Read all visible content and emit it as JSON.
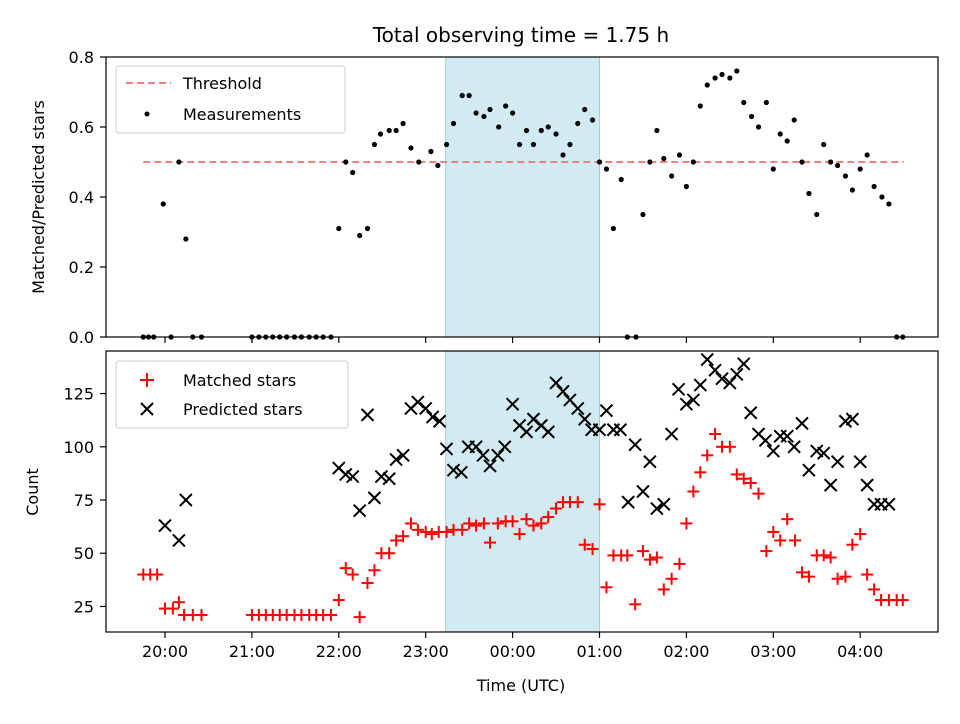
{
  "chart_data": {
    "title": "Total observing time = 1.75 h",
    "xlabel": "Time (UTC)",
    "x_ticks": [
      "20:00",
      "21:00",
      "22:00",
      "23:00",
      "00:00",
      "01:00",
      "02:00",
      "03:00",
      "04:00"
    ],
    "x_unit": "hours since 20:00 UTC",
    "shaded_interval": [
      3.23,
      5.0
    ],
    "shade_color": "#add8e6",
    "panels": [
      {
        "type": "scatter",
        "ylabel": "Matched/Predicted stars",
        "ylim": [
          0,
          0.8
        ],
        "y_ticks": [
          "0.0",
          "0.2",
          "0.4",
          "0.6",
          "0.8"
        ],
        "legend_position": "top-left",
        "threshold": {
          "name": "Threshold",
          "value": 0.5,
          "x_range": [
            -0.25,
            8.5
          ],
          "color": "#f08080"
        },
        "series": [
          {
            "name": "Measurements",
            "color": "#000000",
            "x": [
              -0.25,
              -0.19,
              -0.13,
              -0.02,
              0.07,
              0.16,
              0.24,
              0.32,
              0.42,
              1.0,
              1.08,
              1.16,
              1.24,
              1.32,
              1.4,
              1.49,
              1.57,
              1.66,
              1.74,
              1.82,
              1.91,
              2.0,
              2.08,
              2.16,
              2.24,
              2.33,
              2.41,
              2.48,
              2.58,
              2.66,
              2.74,
              2.83,
              2.92,
              3.06,
              3.14,
              3.24,
              3.32,
              3.42,
              3.5,
              3.58,
              3.67,
              3.74,
              3.84,
              3.92,
              4.0,
              4.08,
              4.16,
              4.24,
              4.33,
              4.41,
              4.5,
              4.58,
              4.66,
              4.75,
              4.83,
              4.92,
              5.0,
              5.08,
              5.16,
              5.25,
              5.32,
              5.42,
              5.5,
              5.58,
              5.66,
              5.74,
              5.83,
              5.92,
              6.0,
              6.08,
              6.16,
              6.24,
              6.33,
              6.41,
              6.5,
              6.58,
              6.66,
              6.75,
              6.83,
              6.92,
              7.0,
              7.08,
              7.16,
              7.24,
              7.33,
              7.41,
              7.5,
              7.58,
              7.66,
              7.74,
              7.83,
              7.91,
              8.0,
              8.08,
              8.16,
              8.25,
              8.33,
              8.42,
              8.49
            ],
            "y": [
              0,
              0,
              0,
              0.38,
              0,
              0.5,
              0.28,
              0,
              0,
              0,
              0,
              0,
              0,
              0,
              0,
              0,
              0,
              0,
              0,
              0,
              0,
              0.31,
              0.5,
              0.47,
              0.29,
              0.31,
              0.55,
              0.58,
              0.59,
              0.59,
              0.61,
              0.54,
              0.5,
              0.53,
              0.49,
              0.55,
              0.61,
              0.69,
              0.69,
              0.64,
              0.63,
              0.65,
              0.6,
              0.66,
              0.64,
              0.55,
              0.59,
              0.55,
              0.59,
              0.6,
              0.58,
              0.52,
              0.55,
              0.61,
              0.65,
              0.62,
              0.5,
              0.48,
              0.31,
              0.45,
              0,
              0,
              0.35,
              0.5,
              0.59,
              0.51,
              0.46,
              0.52,
              0.43,
              0.5,
              0.66,
              0.72,
              0.74,
              0.75,
              0.74,
              0.76,
              0.67,
              0.63,
              0.6,
              0.67,
              0.48,
              0.58,
              0.56,
              0.62,
              0.5,
              0.41,
              0.35,
              0.55,
              0.5,
              0.49,
              0.46,
              0.42,
              0.48,
              0.52,
              0.43,
              0.4,
              0.38,
              0,
              0
            ]
          }
        ]
      },
      {
        "type": "scatter",
        "ylabel": "Count",
        "ylim": [
          13,
          145
        ],
        "y_ticks": [
          "25",
          "50",
          "75",
          "100",
          "125"
        ],
        "legend_position": "top-left",
        "series": [
          {
            "name": "Matched stars",
            "marker": "+",
            "color": "#ff0000",
            "x": [
              -0.25,
              -0.17,
              -0.09,
              0.0,
              0.09,
              0.16,
              0.22,
              0.32,
              0.42,
              1.0,
              1.08,
              1.16,
              1.24,
              1.32,
              1.4,
              1.49,
              1.57,
              1.66,
              1.74,
              1.82,
              1.91,
              2.0,
              2.08,
              2.16,
              2.24,
              2.33,
              2.41,
              2.49,
              2.58,
              2.66,
              2.74,
              2.83,
              2.91,
              3.0,
              3.07,
              3.15,
              3.24,
              3.32,
              3.42,
              3.5,
              3.58,
              3.67,
              3.74,
              3.83,
              3.92,
              4.0,
              4.08,
              4.16,
              4.24,
              4.33,
              4.41,
              4.5,
              4.58,
              4.66,
              4.75,
              4.83,
              4.92,
              5.0,
              5.08,
              5.16,
              5.25,
              5.32,
              5.41,
              5.5,
              5.58,
              5.66,
              5.74,
              5.83,
              5.92,
              6.0,
              6.08,
              6.16,
              6.24,
              6.33,
              6.41,
              6.5,
              6.58,
              6.66,
              6.74,
              6.83,
              6.92,
              7.0,
              7.08,
              7.16,
              7.25,
              7.33,
              7.41,
              7.5,
              7.58,
              7.66,
              7.74,
              7.83,
              7.91,
              8.0,
              8.08,
              8.16,
              8.24,
              8.33,
              8.42,
              8.49
            ],
            "y": [
              40,
              40,
              40,
              24,
              24,
              27,
              21,
              21,
              21,
              21,
              21,
              21,
              21,
              21,
              21,
              21,
              21,
              21,
              21,
              21,
              21,
              28,
              43,
              40,
              20,
              36,
              42,
              50,
              50,
              56,
              58,
              64,
              61,
              60,
              59,
              60,
              60,
              61,
              61,
              64,
              63,
              64,
              55,
              64,
              65,
              65,
              59,
              66,
              63,
              64,
              67,
              71,
              74,
              74,
              74,
              54,
              52,
              73,
              34,
              49,
              49,
              49,
              26,
              51,
              47,
              48,
              33,
              38,
              45,
              64,
              79,
              88,
              96,
              106,
              100,
              100,
              87,
              85,
              83,
              78,
              51,
              60,
              56,
              66,
              56,
              41,
              39,
              49,
              49,
              48,
              38,
              39,
              54,
              59,
              40,
              33,
              28,
              28,
              28,
              28
            ],
            "sizes_hint": "small"
          },
          {
            "name": "Predicted stars",
            "marker": "x",
            "color": "#000000",
            "x": [
              0.0,
              0.16,
              0.24,
              2.0,
              2.08,
              2.16,
              2.24,
              2.33,
              2.41,
              2.49,
              2.58,
              2.66,
              2.74,
              2.83,
              2.91,
              3.0,
              3.08,
              3.16,
              3.24,
              3.32,
              3.41,
              3.49,
              3.58,
              3.66,
              3.74,
              3.83,
              3.91,
              4.0,
              4.08,
              4.16,
              4.24,
              4.33,
              4.41,
              4.5,
              4.58,
              4.66,
              4.75,
              4.83,
              4.91,
              5.0,
              5.08,
              5.16,
              5.24,
              5.33,
              5.41,
              5.5,
              5.58,
              5.66,
              5.74,
              5.83,
              5.91,
              6.0,
              6.08,
              6.16,
              6.24,
              6.33,
              6.41,
              6.5,
              6.58,
              6.66,
              6.74,
              6.83,
              6.91,
              7.0,
              7.08,
              7.16,
              7.24,
              7.33,
              7.41,
              7.5,
              7.58,
              7.66,
              7.74,
              7.83,
              7.91,
              8.0,
              8.08,
              8.16,
              8.24,
              8.33
            ],
            "y": [
              63,
              56,
              75,
              90,
              87,
              86,
              70,
              115,
              76,
              86,
              85,
              94,
              96,
              118,
              121,
              118,
              114,
              112,
              99,
              89,
              88,
              100,
              100,
              96,
              91,
              96,
              100,
              120,
              110,
              107,
              113,
              110,
              107,
              130,
              126,
              122,
              118,
              113,
              108,
              108,
              117,
              108,
              108,
              74,
              101,
              79,
              93,
              71,
              73,
              106,
              127,
              120,
              122,
              129,
              141,
              136,
              132,
              130,
              134,
              139,
              116,
              106,
              103,
              98,
              105,
              105,
              100,
              111,
              89,
              98,
              97,
              82,
              93,
              112,
              113,
              93,
              82,
              73,
              73,
              73
            ]
          }
        ]
      }
    ]
  }
}
